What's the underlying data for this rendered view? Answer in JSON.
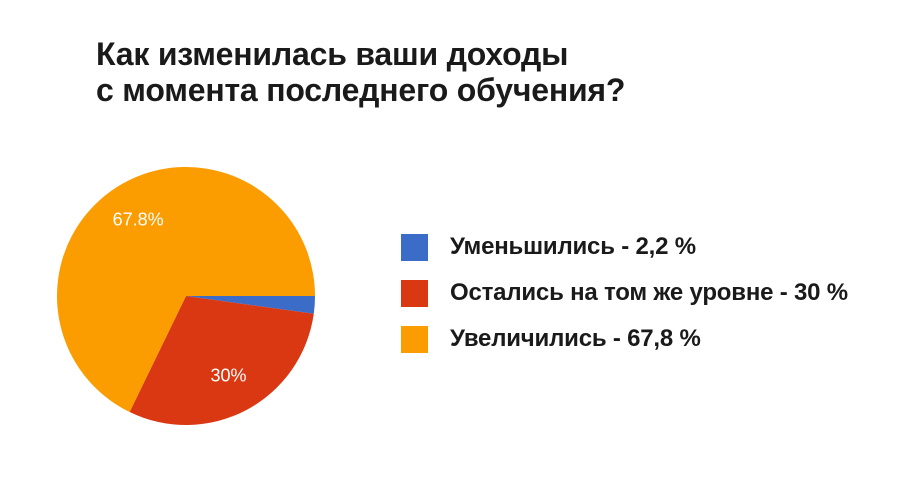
{
  "title": "Как изменилась ваши доходы\nс момента последнего обучения?",
  "colors": {
    "background": "#ffffff",
    "title_text": "#1a1a1a",
    "legend_text": "#1a1a1a",
    "slice_label_text": "#ffffff",
    "blue": "#3a6cc8",
    "red": "#d93812",
    "orange": "#fb9c00"
  },
  "legend": {
    "items": [
      {
        "label": "Уменьшились - 2,2 %",
        "color": "#3a6cc8"
      },
      {
        "label": "Остались на том же уровне - 30 %",
        "color": "#d93812"
      },
      {
        "label": "Увеличились - 67,8 %",
        "color": "#fb9c00"
      }
    ]
  },
  "chart_data": {
    "type": "pie",
    "title": "Как изменилась ваши доходы с момента последнего обучения?",
    "categories": [
      "Уменьшились",
      "Остались на том же уровне",
      "Увеличились"
    ],
    "values": [
      2.2,
      30,
      67.8
    ],
    "unit": "%",
    "colors": [
      "#3a6cc8",
      "#d93812",
      "#fb9c00"
    ],
    "slice_labels": [
      "",
      "30%",
      "67.8%"
    ],
    "start_angle_deg": 0,
    "direction": "clockwise",
    "legend_position": "right",
    "labels_inside": true
  }
}
